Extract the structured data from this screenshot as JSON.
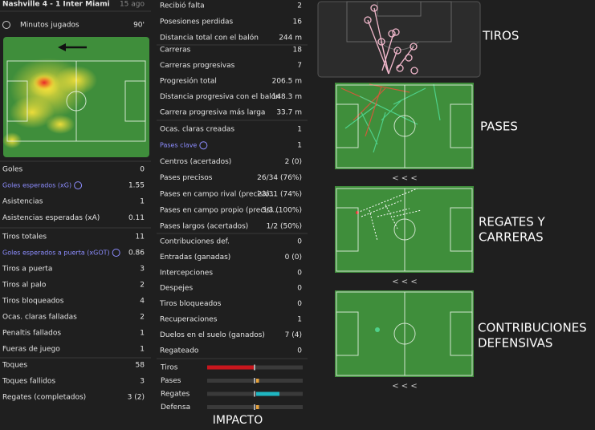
{
  "header": {
    "match": "Nashville 4 - 1 Inter Miami",
    "date": "15 ago",
    "minutes_label": "Minutos jugados",
    "minutes_value": "90'"
  },
  "left_stats": [
    [
      {
        "label": "Goles",
        "value": "0"
      },
      {
        "label": "Goles esperados (xG)",
        "value": "1.55",
        "highlight": true
      },
      {
        "label": "Asistencias",
        "value": "1"
      },
      {
        "label": "Asistencias esperadas (xA)",
        "value": "0.11"
      }
    ],
    [
      {
        "label": "Tiros totales",
        "value": "11"
      },
      {
        "label": "Goles esperados a puerta (xGOT)",
        "value": "0.86",
        "highlight": true
      },
      {
        "label": "Tiros a puerta",
        "value": "3"
      },
      {
        "label": "Tiros al palo",
        "value": "2"
      },
      {
        "label": "Tiros bloqueados",
        "value": "4"
      },
      {
        "label": "Ocas. claras falladas",
        "value": "2"
      },
      {
        "label": "Penaltis fallados",
        "value": "1"
      },
      {
        "label": "Fueras de juego",
        "value": "1"
      }
    ],
    [
      {
        "label": "Toques",
        "value": "58"
      },
      {
        "label": "Toques fallidos",
        "value": "3"
      },
      {
        "label": "Regates (completados)",
        "value": "3 (2)"
      }
    ]
  ],
  "middle_stats": [
    [
      {
        "label": "Recibió falta",
        "value": "2"
      },
      {
        "label": "Posesiones perdidas",
        "value": "16"
      },
      {
        "label": "Distancia total con el balón",
        "value": "244 m"
      }
    ],
    [
      {
        "label": "Carreras",
        "value": "18"
      },
      {
        "label": "Carreras progresivas",
        "value": "7"
      },
      {
        "label": "Progresión total",
        "value": "206.5 m"
      },
      {
        "label": "Distancia progresiva con el balón",
        "value": "148.3 m"
      },
      {
        "label": "Carrera progresiva más larga",
        "value": "33.7 m"
      }
    ],
    [
      {
        "label": "Ocas. claras creadas",
        "value": "1"
      },
      {
        "label": "Pases clave",
        "value": "1",
        "highlight": true
      },
      {
        "label": "Centros (acertados)",
        "value": "2 (0)"
      },
      {
        "label": "Pases precisos",
        "value": "26/34 (76%)"
      },
      {
        "label": "Pases en campo rival (precisió...",
        "value": "23/31 (74%)"
      },
      {
        "label": "Pases en campo propio (precisi...",
        "value": "3/3 (100%)"
      },
      {
        "label": "Pases largos (acertados)",
        "value": "1/2 (50%)"
      }
    ],
    [
      {
        "label": "Contribuciones def.",
        "value": "0"
      },
      {
        "label": "Entradas (ganadas)",
        "value": "0 (0)"
      },
      {
        "label": "Intercepciones",
        "value": "0"
      },
      {
        "label": "Despejes",
        "value": "0"
      },
      {
        "label": "Tiros bloqueados",
        "value": "0"
      },
      {
        "label": "Recuperaciones",
        "value": "1"
      },
      {
        "label": "Duelos en el suelo (ganados)",
        "value": "7 (4)"
      },
      {
        "label": "Regateado",
        "value": "0"
      }
    ]
  ],
  "impact": {
    "title": "IMPACTO",
    "range": [
      -1,
      1
    ],
    "rows": [
      {
        "label": "Tiros",
        "value": -1,
        "color": "#c8161d"
      },
      {
        "label": "Pases",
        "value": 0.06,
        "color": "#e6a23c"
      },
      {
        "label": "Regates",
        "value": 0.5,
        "color": "#1fb6c1"
      },
      {
        "label": "Defensa",
        "value": 0.06,
        "color": "#e6a23c"
      }
    ]
  },
  "panels": {
    "shots": "TIROS",
    "passes": "PASES",
    "dribbles": [
      "REGATES Y",
      "CARRERAS"
    ],
    "defense": [
      "CONTRIBUCIONES",
      "DEFENSIVAS"
    ],
    "more": "< < <"
  }
}
